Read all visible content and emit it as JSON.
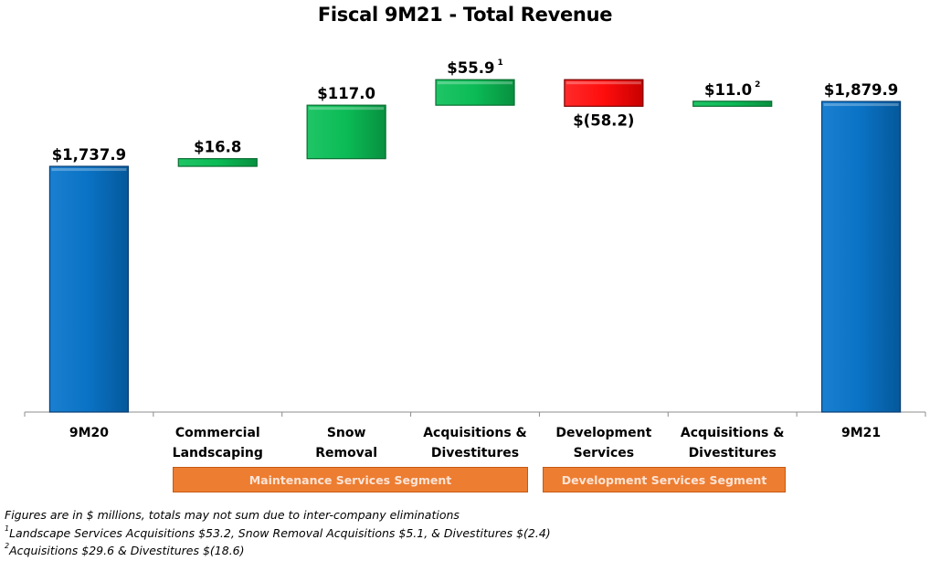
{
  "chart_data": {
    "type": "bar",
    "subtype": "waterfall",
    "title": "Fiscal 9M21 - Total Revenue",
    "xlabel": "",
    "ylabel": "",
    "ylim": [
      1200,
      1950
    ],
    "grid": false,
    "legend": "none",
    "categories": [
      [
        "9M20"
      ],
      [
        "Commercial",
        "Landscaping"
      ],
      [
        "Snow",
        "Removal"
      ],
      [
        "Acquisitions &",
        "Divestitures"
      ],
      [
        "Development",
        "Services"
      ],
      [
        "Acquisitions &",
        "Divestitures"
      ],
      [
        "9M21"
      ]
    ],
    "bars": [
      {
        "kind": "total",
        "value": 1737.9,
        "label": "$1,737.9",
        "footnote": ""
      },
      {
        "kind": "delta",
        "value": 16.8,
        "label": "$16.8",
        "footnote": ""
      },
      {
        "kind": "delta",
        "value": 117.0,
        "label": "$117.0",
        "footnote": ""
      },
      {
        "kind": "delta",
        "value": 55.9,
        "label": "$55.9",
        "footnote": "1"
      },
      {
        "kind": "delta",
        "value": -58.2,
        "label": "$(58.2)",
        "footnote": ""
      },
      {
        "kind": "delta",
        "value": 11.0,
        "label": "$11.0",
        "footnote": "2"
      },
      {
        "kind": "total",
        "value": 1879.9,
        "label": "$1,879.9",
        "footnote": ""
      }
    ],
    "colors": {
      "total": "#0070C0",
      "increase": "#00B050",
      "decrease": "#FF0000",
      "segment": "#ED7D31"
    }
  },
  "segments": [
    {
      "label": "Maintenance Services Segment",
      "spans": "Commercial Landscaping – Acquisitions & Divestitures"
    },
    {
      "label": "Development Services Segment",
      "spans": "Development Services – Acquisitions & Divestitures"
    }
  ],
  "footnotes": {
    "general": "Figures are in $ millions, totals may not sum due to inter-company eliminations",
    "note1_marker": "1",
    "note1": "Landscape Services Acquisitions $53.2, Snow Removal Acquisitions $5.1, & Divestitures $(2.4)",
    "note2_marker": "2",
    "note2": "Acquisitions $29.6 & Divestitures $(18.6)"
  }
}
